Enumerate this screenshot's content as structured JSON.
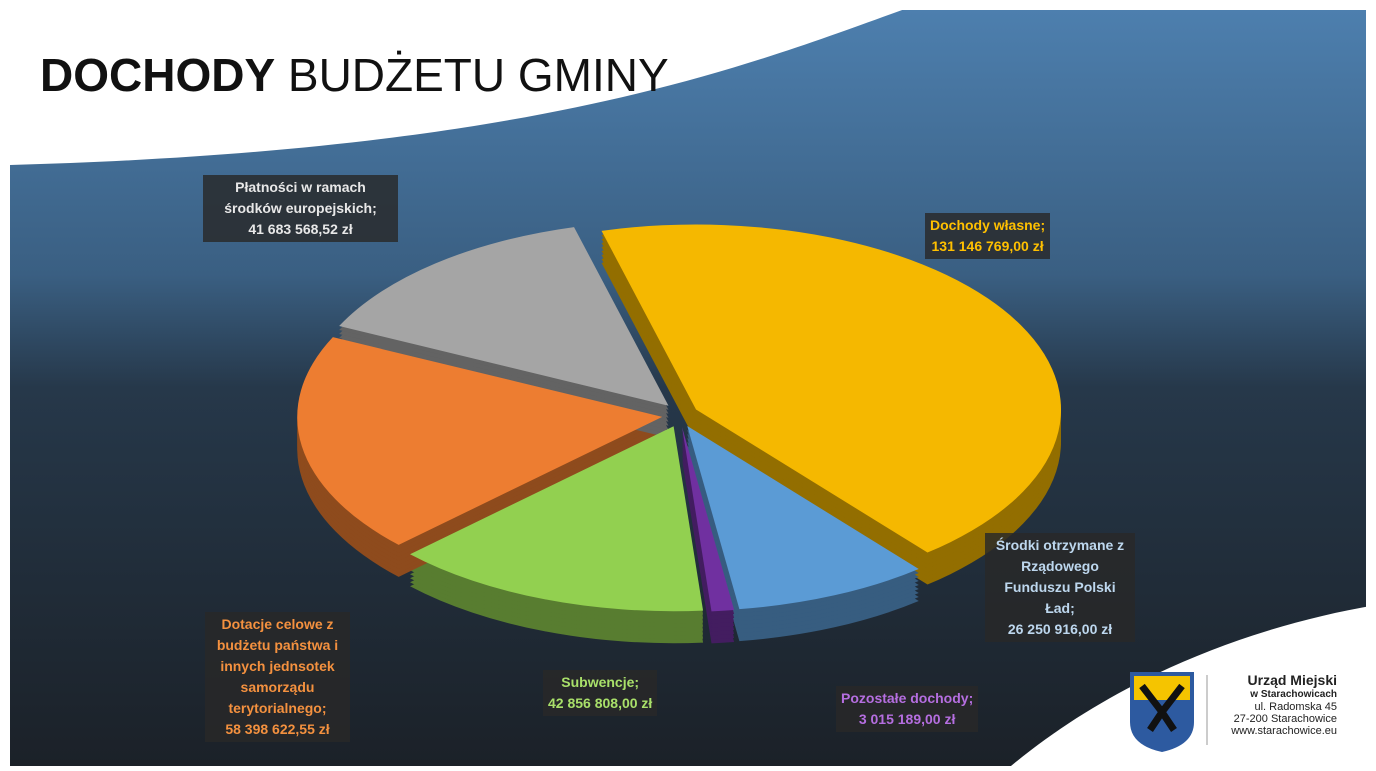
{
  "chart_data": {
    "type": "pie3d",
    "title_bold": "DOCHODY",
    "title_rest": "BUDŻETU GMINY",
    "categories": [
      "Dochody własne;",
      "Środki otrzymane z Rządowego Funduszu Polski Ład;",
      "Pozostałe dochody;",
      "Subwencje;",
      "Dotacje celowe z budżetu państwa i innych jednsotek samorządu terytorialnego;",
      "Płatności w ramach środków europejskich;"
    ],
    "values": [
      131146769.0,
      26250916.0,
      3015189.0,
      42856808.0,
      58398622.55,
      41683568.52
    ],
    "value_labels": [
      "131 146 769,00 zł",
      "26 250 916,00 zł",
      "3 015 189,00 zł",
      "42 856 808,00 zł",
      "58 398 622,55 zł",
      "41 683 568,52 zł"
    ],
    "colors": [
      "#f5b800",
      "#5b9bd5",
      "#7030a0",
      "#92d050",
      "#ed7d31",
      "#a5a5a5"
    ],
    "label_colors": [
      "#ffc000",
      "#bdd7ee",
      "#b56ee0",
      "#a9e06a",
      "#f4913f",
      "#e8e8e8"
    ]
  },
  "logo": {
    "name": "Urząd Miejski",
    "town": "w Starachowicach",
    "street": "ul. Radomska 45",
    "city": "27-200 Starachowice",
    "web": "www.starachowice.eu"
  }
}
